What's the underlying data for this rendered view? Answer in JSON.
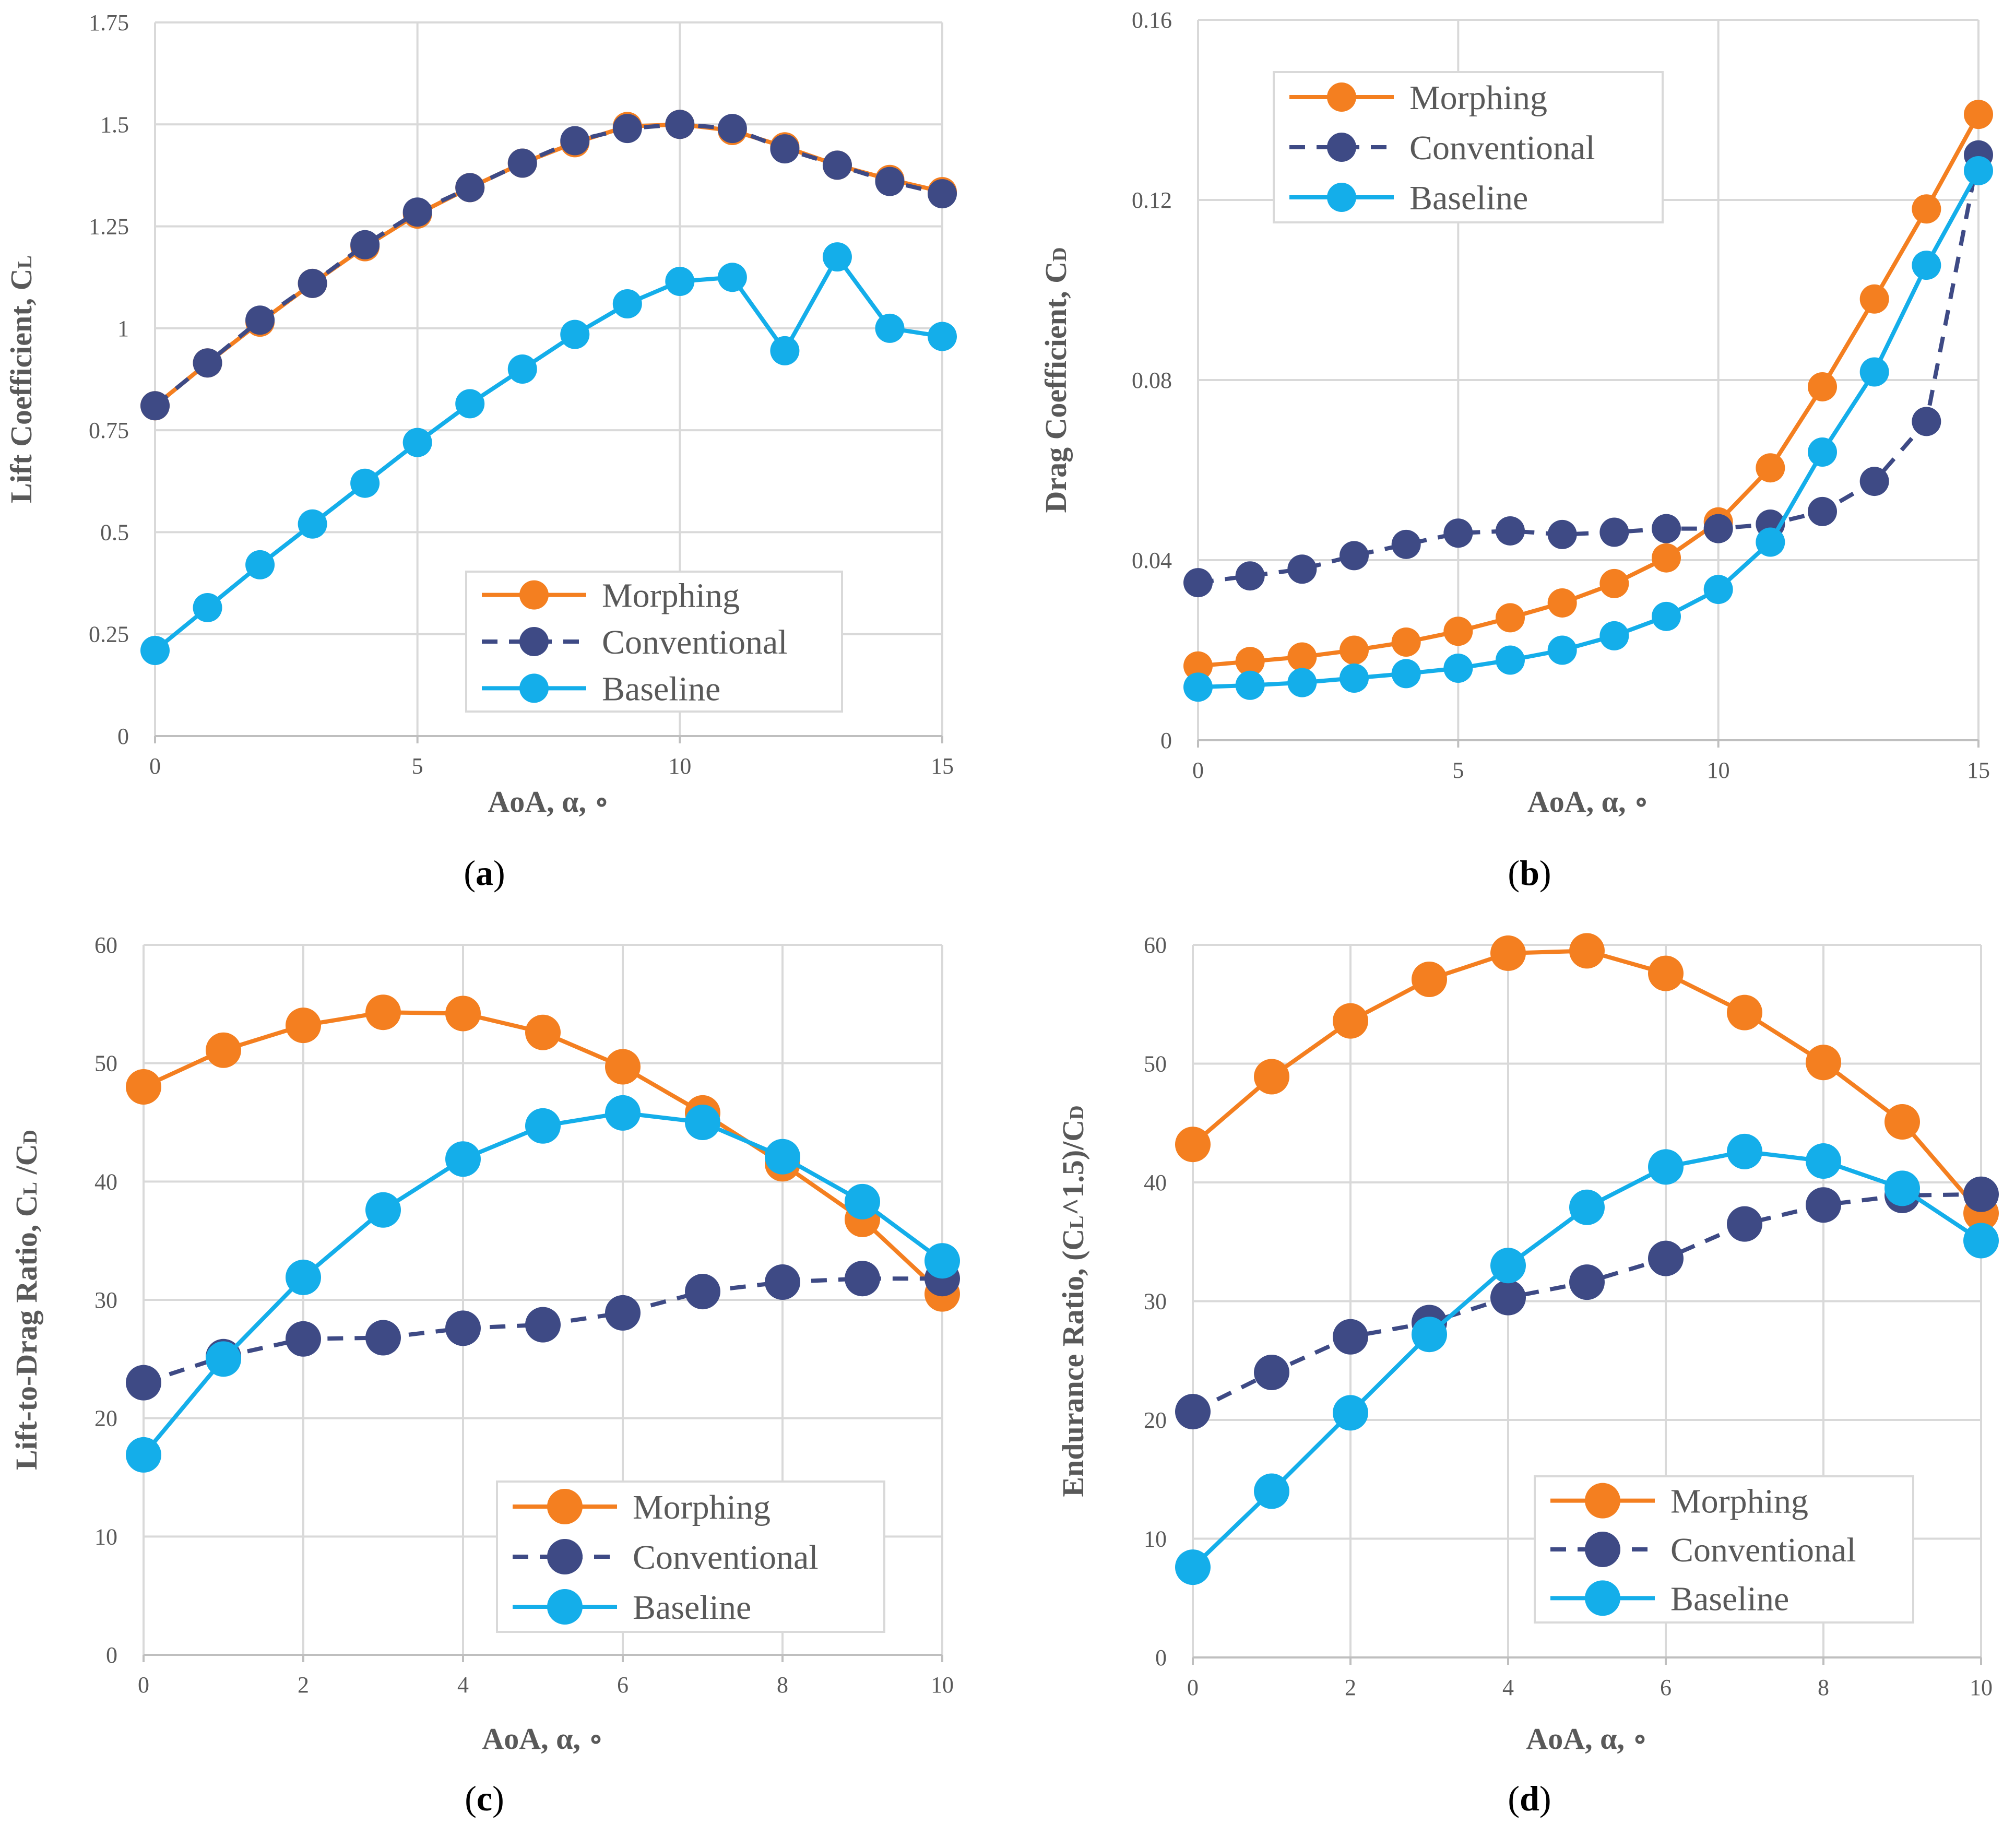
{
  "colors": {
    "morphing": "#F47F20",
    "conventional": "#3E4A85",
    "baseline": "#14AEEA",
    "grid": "#D9D9D9",
    "text": "#595959"
  },
  "chart_data": [
    {
      "id": "a",
      "type": "line",
      "caption": "(a)",
      "caption_letter": "a",
      "xlabel": "AoA, α, ∘",
      "ylabel": "Lift Coefficient, CL",
      "ylabel_main": "Lift Coefficient, C",
      "ylabel_sub": "L",
      "xlim": [
        0,
        15
      ],
      "ylim": [
        0,
        1.75
      ],
      "xticks": [
        0,
        5,
        10,
        15
      ],
      "xtick_labels": [
        "0",
        "5",
        "10",
        "15"
      ],
      "yticks": [
        0,
        0.25,
        0.5,
        0.75,
        1,
        1.25,
        1.5,
        1.75
      ],
      "ytick_labels": [
        "0",
        "0.25",
        "0.5",
        "0.75",
        "1",
        "1.25",
        "1.5",
        "1.75"
      ],
      "legend_position": "bottom-right",
      "series": [
        {
          "name": "Morphing",
          "x": [
            0,
            1,
            2,
            3,
            4,
            5,
            6,
            7,
            8,
            9,
            10,
            11,
            12,
            13,
            14,
            15
          ],
          "values": [
            0.81,
            0.915,
            1.015,
            1.11,
            1.2,
            1.28,
            1.345,
            1.405,
            1.455,
            1.495,
            1.5,
            1.485,
            1.445,
            1.4,
            1.365,
            1.335
          ]
        },
        {
          "name": "Conventional",
          "x": [
            0,
            1,
            2,
            3,
            4,
            5,
            6,
            7,
            8,
            9,
            10,
            11,
            12,
            13,
            14,
            15
          ],
          "values": [
            0.81,
            0.915,
            1.02,
            1.11,
            1.205,
            1.285,
            1.345,
            1.405,
            1.46,
            1.49,
            1.5,
            1.49,
            1.44,
            1.4,
            1.36,
            1.33
          ]
        },
        {
          "name": "Baseline",
          "x": [
            0,
            1,
            2,
            3,
            4,
            5,
            6,
            7,
            8,
            9,
            10,
            11,
            12,
            13,
            14,
            15
          ],
          "values": [
            0.21,
            0.315,
            0.42,
            0.52,
            0.62,
            0.72,
            0.815,
            0.9,
            0.985,
            1.06,
            1.115,
            1.125,
            0.945,
            1.175,
            1.0,
            0.98
          ]
        }
      ]
    },
    {
      "id": "b",
      "type": "line",
      "caption": "(b)",
      "caption_letter": "b",
      "xlabel": "AoA, α, ∘",
      "ylabel": "Drag Coefficient, CD",
      "ylabel_main": "Drag Coefficient, C",
      "ylabel_sub": "D",
      "xlim": [
        0,
        15
      ],
      "ylim": [
        0,
        0.16
      ],
      "xticks": [
        0,
        5,
        10,
        15
      ],
      "xtick_labels": [
        "0",
        "5",
        "10",
        "15"
      ],
      "yticks": [
        0,
        0.04,
        0.08,
        0.12,
        0.16
      ],
      "ytick_labels": [
        "0",
        "0.04",
        "0.08",
        "0.12",
        "0.16"
      ],
      "legend_position": "top-left",
      "series": [
        {
          "name": "Morphing",
          "x": [
            0,
            1,
            2,
            3,
            4,
            5,
            6,
            7,
            8,
            9,
            10,
            11,
            12,
            13,
            14,
            15
          ],
          "values": [
            0.0165,
            0.0175,
            0.0185,
            0.02,
            0.0218,
            0.0242,
            0.0272,
            0.0305,
            0.0348,
            0.0405,
            0.0485,
            0.0605,
            0.0785,
            0.098,
            0.118,
            0.139
          ]
        },
        {
          "name": "Conventional",
          "x": [
            0,
            1,
            2,
            3,
            4,
            5,
            6,
            7,
            8,
            9,
            10,
            11,
            12,
            13,
            14,
            15
          ],
          "values": [
            0.035,
            0.0365,
            0.038,
            0.041,
            0.0435,
            0.046,
            0.0465,
            0.0457,
            0.0462,
            0.047,
            0.047,
            0.048,
            0.0508,
            0.0575,
            0.0708,
            0.13
          ]
        },
        {
          "name": "Baseline",
          "x": [
            0,
            1,
            2,
            3,
            4,
            5,
            6,
            7,
            8,
            9,
            10,
            11,
            12,
            13,
            14,
            15
          ],
          "values": [
            0.0118,
            0.0122,
            0.0128,
            0.0138,
            0.0148,
            0.016,
            0.0178,
            0.02,
            0.0232,
            0.0275,
            0.0335,
            0.044,
            0.064,
            0.0818,
            0.1055,
            0.1265
          ]
        }
      ]
    },
    {
      "id": "c",
      "type": "line",
      "caption": "(c)",
      "caption_letter": "c",
      "xlabel": "AoA, α, ∘",
      "ylabel": "Lift-to-Drag Ratio, CL /CD",
      "ylabel_main": "Lift-to-Drag Ratio, C",
      "ylabel_sub": "L",
      "ylabel_mid": " /C",
      "ylabel_sub2": "D",
      "xlim": [
        0,
        10
      ],
      "ylim": [
        0,
        60
      ],
      "xticks": [
        0,
        2,
        4,
        6,
        8,
        10
      ],
      "xtick_labels": [
        "0",
        "2",
        "4",
        "6",
        "8",
        "10"
      ],
      "yticks": [
        0,
        10,
        20,
        30,
        40,
        50,
        60
      ],
      "ytick_labels": [
        "0",
        "10",
        "20",
        "30",
        "40",
        "50",
        "60"
      ],
      "legend_position": "bottom-right",
      "series": [
        {
          "name": "Morphing",
          "x": [
            0,
            1,
            2,
            3,
            4,
            5,
            6,
            7,
            8,
            9,
            10
          ],
          "values": [
            48,
            51.1,
            53.2,
            54.3,
            54.2,
            52.6,
            49.7,
            45.8,
            41.5,
            36.8,
            30.5
          ]
        },
        {
          "name": "Conventional",
          "x": [
            0,
            1,
            2,
            3,
            4,
            5,
            6,
            7,
            8,
            9,
            10
          ],
          "values": [
            23,
            25.2,
            26.7,
            26.8,
            27.6,
            27.9,
            28.9,
            30.7,
            31.5,
            31.8,
            31.8
          ]
        },
        {
          "name": "Baseline",
          "x": [
            0,
            1,
            2,
            3,
            4,
            5,
            6,
            7,
            8,
            9,
            10
          ],
          "values": [
            16.9,
            25,
            31.9,
            37.6,
            41.9,
            44.7,
            45.8,
            45,
            42.1,
            38.3,
            33.3
          ]
        }
      ]
    },
    {
      "id": "d",
      "type": "line",
      "caption": "(d)",
      "caption_letter": "d",
      "xlabel": "AoA, α, ∘",
      "ylabel": "Endurance Ratio, (CL^1.5)/CD",
      "ylabel_main": "Endurance Ratio, (C",
      "ylabel_sub": "L",
      "ylabel_mid": "^1.5)/C",
      "ylabel_sub2": "D",
      "xlim": [
        0,
        10
      ],
      "ylim": [
        0,
        60
      ],
      "xticks": [
        0,
        2,
        4,
        6,
        8,
        10
      ],
      "xtick_labels": [
        "0",
        "2",
        "4",
        "6",
        "8",
        "10"
      ],
      "yticks": [
        0,
        10,
        20,
        30,
        40,
        50,
        60
      ],
      "ytick_labels": [
        "0",
        "10",
        "20",
        "30",
        "40",
        "50",
        "60"
      ],
      "legend_position": "bottom-right",
      "series": [
        {
          "name": "Morphing",
          "x": [
            0,
            1,
            2,
            3,
            4,
            5,
            6,
            7,
            8,
            9,
            10
          ],
          "values": [
            43.2,
            48.9,
            53.6,
            57.1,
            59.3,
            59.5,
            57.6,
            54.3,
            50.1,
            45.1,
            37.4
          ]
        },
        {
          "name": "Conventional",
          "x": [
            0,
            1,
            2,
            3,
            4,
            5,
            6,
            7,
            8,
            9,
            10
          ],
          "values": [
            20.7,
            24,
            27,
            28.2,
            30.3,
            31.6,
            33.6,
            36.5,
            38.1,
            38.9,
            39
          ]
        },
        {
          "name": "Baseline",
          "x": [
            0,
            1,
            2,
            3,
            4,
            5,
            6,
            7,
            8,
            9,
            10
          ],
          "values": [
            7.6,
            14,
            20.6,
            27.2,
            33,
            37.9,
            41.3,
            42.6,
            41.8,
            39.5,
            35.1
          ]
        }
      ]
    }
  ]
}
